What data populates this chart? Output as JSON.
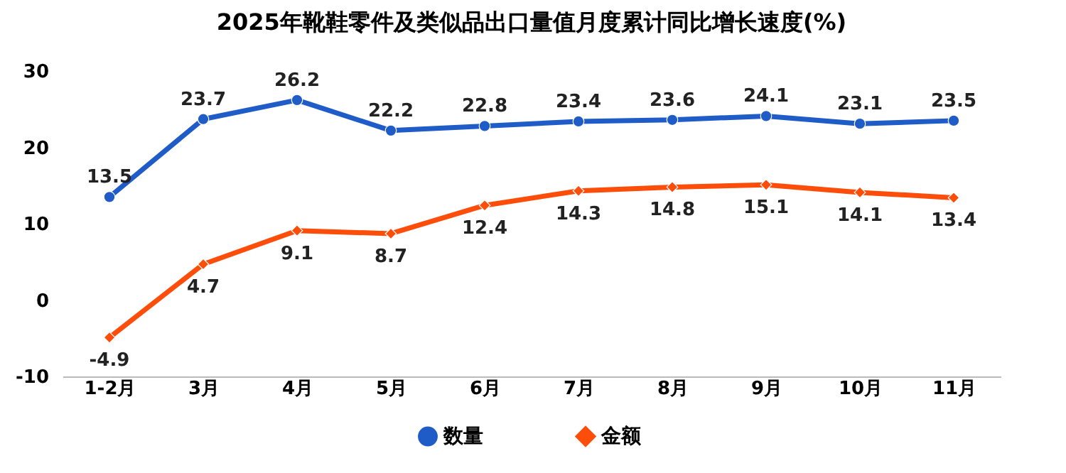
{
  "chart_data": {
    "type": "line",
    "title": "2025年靴鞋零件及类似品出口量值月度累计同比增长速度(%)",
    "categories": [
      "1-2月",
      "3月",
      "4月",
      "5月",
      "6月",
      "7月",
      "8月",
      "9月",
      "10月",
      "11月"
    ],
    "series": [
      {
        "name": "数量",
        "color": "#1f5cc8",
        "marker": "circle",
        "values": [
          13.5,
          23.7,
          26.2,
          22.2,
          22.8,
          23.4,
          23.6,
          24.1,
          23.1,
          23.5
        ]
      },
      {
        "name": "金额",
        "color": "#fc4d0a",
        "marker": "diamond",
        "values": [
          -4.9,
          4.7,
          9.1,
          8.7,
          12.4,
          14.3,
          14.8,
          15.1,
          14.1,
          13.4
        ]
      }
    ],
    "ylim": [
      -10,
      30
    ],
    "yticks": [
      -10,
      0,
      10,
      20,
      30
    ],
    "grid": false,
    "legend": "bottom",
    "data_labels": true,
    "line_style": "solid"
  }
}
